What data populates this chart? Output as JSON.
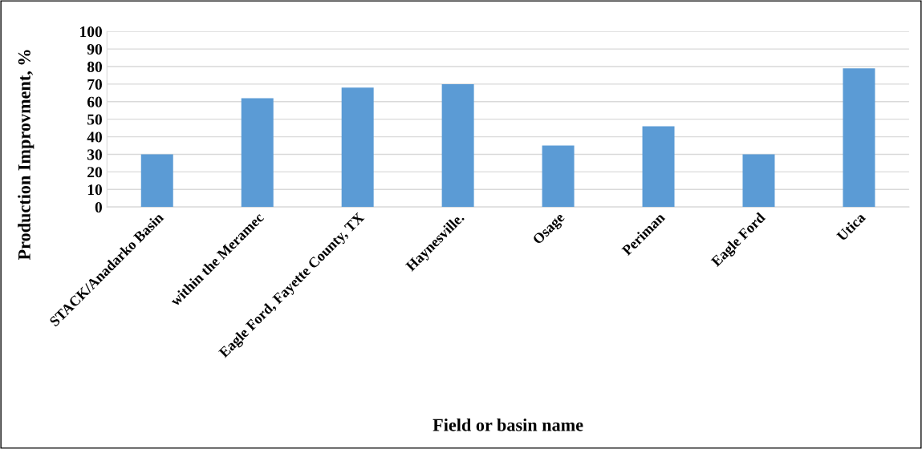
{
  "chart_data": {
    "type": "bar",
    "categories": [
      "STACK/Anadarko Basin",
      "within the Meramec",
      "Eagle Ford, Fayette County, TX",
      "Haynesville.",
      "Osage",
      "Periman",
      "Eagle Ford",
      "Utica"
    ],
    "values": [
      30,
      62,
      68,
      70,
      35,
      46,
      30,
      79
    ],
    "color": "#5b9bd5",
    "xlabel": "Field or basin name",
    "ylabel": "Production Improvment, %",
    "ylim": [
      0,
      100
    ],
    "yticks": [
      0,
      10,
      20,
      30,
      40,
      50,
      60,
      70,
      80,
      90,
      100
    ],
    "grid": "y"
  }
}
